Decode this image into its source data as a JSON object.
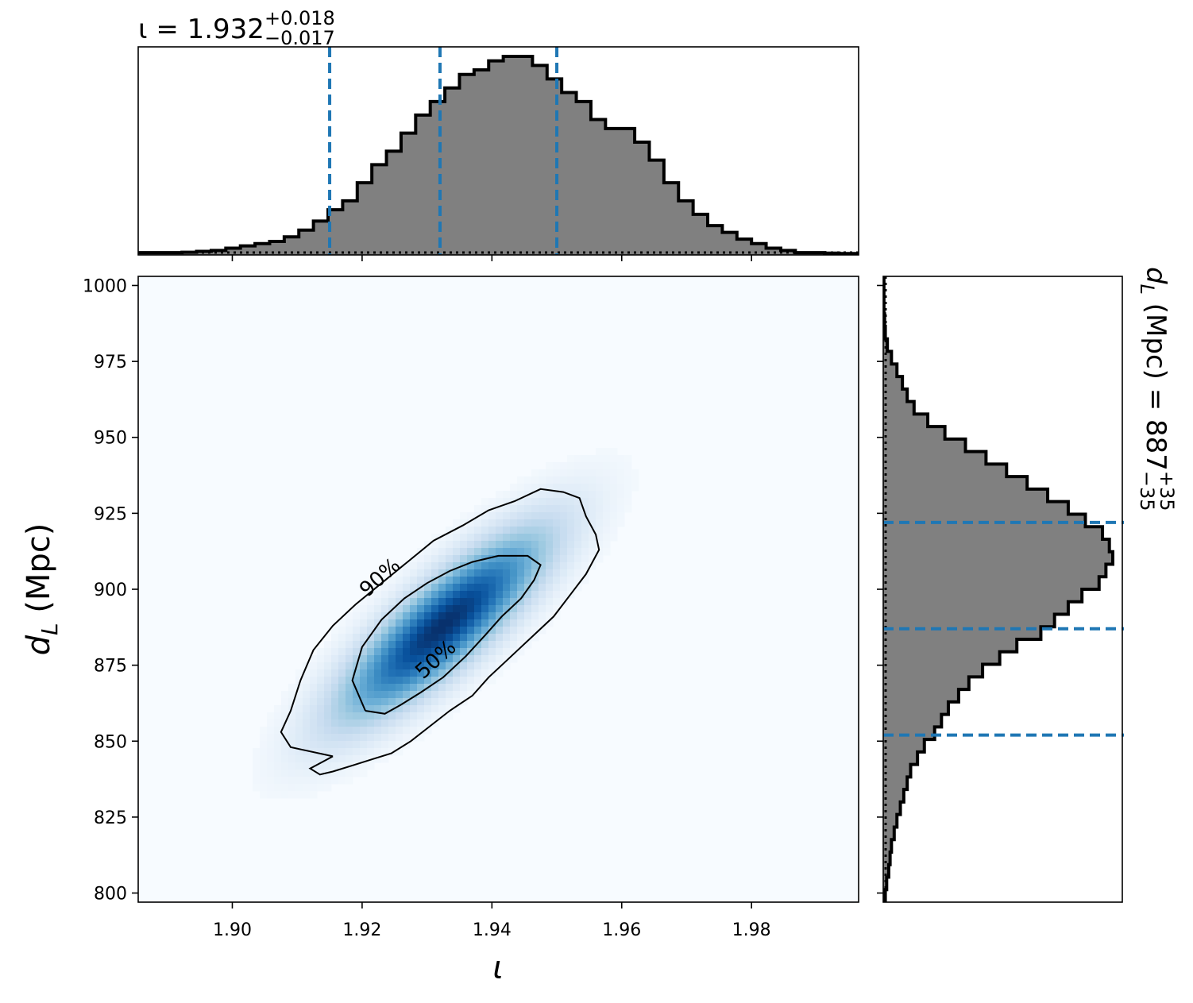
{
  "chart_data": [
    {
      "panel": "top-marginal",
      "type": "histogram",
      "title": {
        "prefix": "ι = 1.932",
        "sup": "+0.018",
        "sub": "−0.017"
      },
      "xlim": [
        1.8855,
        1.9965
      ],
      "x_ticks": [
        1.9,
        1.92,
        1.94,
        1.96,
        1.98
      ],
      "bin_edges_start": 1.8855,
      "bin_width": 0.00225,
      "counts": [
        0.5,
        0.5,
        0.5,
        0.6,
        0.8,
        1,
        1.5,
        2,
        2.5,
        3,
        4,
        5.5,
        7.5,
        10,
        12,
        16,
        20,
        23,
        27,
        31,
        34,
        37,
        40,
        41,
        43,
        44,
        44,
        42,
        39,
        36,
        34,
        30,
        28,
        28,
        25,
        21,
        16,
        12,
        9,
        6.5,
        5,
        3.5,
        2.5,
        1.5,
        1,
        0.5,
        0.5,
        0.4,
        0.3,
        0.3
      ],
      "quantile_lines": [
        1.915,
        1.932,
        1.95
      ],
      "quantile_line_color": "#1f77b4",
      "fill_color": "#808080"
    },
    {
      "panel": "right-marginal",
      "type": "histogram",
      "orientation": "horizontal",
      "title": {
        "prefix": "d",
        "prefix_sub": "L",
        "middle": " (Mpc) = 887",
        "sup": "+35",
        "sub": "−35"
      },
      "ylim": [
        797,
        1003
      ],
      "y_ticks": [
        800,
        825,
        850,
        875,
        900,
        925,
        950,
        975,
        1000
      ],
      "bin_edges_start": 797,
      "bin_width": 4.12,
      "counts": [
        0.3,
        0.5,
        0.8,
        1,
        1.2,
        1.6,
        2,
        2.5,
        3,
        3.5,
        4,
        5,
        6,
        7.5,
        8.5,
        9.5,
        11,
        12.5,
        14.5,
        17,
        19.5,
        23,
        25,
        27,
        29,
        31.5,
        32.5,
        33.5,
        33,
        32,
        29.5,
        27,
        24,
        21,
        18,
        15,
        12,
        9,
        6.5,
        4.5,
        3.5,
        2.8,
        2,
        1.2,
        0.6,
        0.3,
        0.2,
        0.1,
        0.1,
        0.1
      ],
      "quantile_lines": [
        852,
        887,
        922
      ],
      "quantile_line_color": "#1f77b4",
      "fill_color": "#808080"
    },
    {
      "panel": "joint",
      "type": "heatmap",
      "xlabel": "ι",
      "ylabel": {
        "main": "d",
        "sub": "L",
        "rest": " (Mpc)"
      },
      "xlim": [
        1.8855,
        1.9965
      ],
      "ylim": [
        797,
        1003
      ],
      "x_ticks": [
        1.9,
        1.92,
        1.94,
        1.96,
        1.98
      ],
      "x_tick_labels": [
        "1.90",
        "1.92",
        "1.94",
        "1.96",
        "1.98"
      ],
      "y_ticks": [
        800,
        825,
        850,
        875,
        900,
        925,
        950,
        975,
        1000
      ],
      "y_tick_labels": [
        "800",
        "825",
        "850",
        "875",
        "900",
        "925",
        "950",
        "975",
        "1000"
      ],
      "peak": {
        "x": 1.9325,
        "y": 888
      },
      "colormap": "Blues",
      "contours": [
        {
          "label": "90%",
          "label_position": {
            "x": 1.9227,
            "y": 904
          },
          "label_rotation_deg": -42,
          "points": [
            [
              1.9155,
              845
            ],
            [
              1.912,
              841
            ],
            [
              1.9135,
              839
            ],
            [
              1.9155,
              840
            ],
            [
              1.9185,
              842
            ],
            [
              1.9215,
              844
            ],
            [
              1.9245,
              846
            ],
            [
              1.9275,
              850
            ],
            [
              1.9305,
              855
            ],
            [
              1.9335,
              860
            ],
            [
              1.937,
              865
            ],
            [
              1.9395,
              871
            ],
            [
              1.942,
              876
            ],
            [
              1.9445,
              881
            ],
            [
              1.947,
              886
            ],
            [
              1.9495,
              891
            ],
            [
              1.952,
              898
            ],
            [
              1.9545,
              905
            ],
            [
              1.9565,
              913
            ],
            [
              1.956,
              918
            ],
            [
              1.9545,
              924
            ],
            [
              1.9535,
              930
            ],
            [
              1.951,
              932
            ],
            [
              1.9475,
              933
            ],
            [
              1.9435,
              929
            ],
            [
              1.9395,
              926
            ],
            [
              1.9355,
              921
            ],
            [
              1.931,
              916
            ],
            [
              1.927,
              909
            ],
            [
              1.923,
              902
            ],
            [
              1.919,
              895
            ],
            [
              1.9155,
              888
            ],
            [
              1.9125,
              880
            ],
            [
              1.9105,
              870
            ],
            [
              1.909,
              860
            ],
            [
              1.9075,
              853
            ],
            [
              1.909,
              848
            ],
            [
              1.9155,
              845
            ]
          ]
        },
        {
          "label": "50%",
          "label_position": {
            "x": 1.9313,
            "y": 877
          },
          "label_rotation_deg": -42,
          "points": [
            [
              1.9205,
              860
            ],
            [
              1.9235,
              859
            ],
            [
              1.926,
              862
            ],
            [
              1.929,
              866
            ],
            [
              1.9325,
              871
            ],
            [
              1.936,
              878
            ],
            [
              1.939,
              885
            ],
            [
              1.9415,
              891
            ],
            [
              1.9445,
              897
            ],
            [
              1.9465,
              903
            ],
            [
              1.9475,
              908
            ],
            [
              1.9455,
              911
            ],
            [
              1.941,
              911
            ],
            [
              1.937,
              909
            ],
            [
              1.9335,
              906
            ],
            [
              1.93,
              902
            ],
            [
              1.9265,
              897
            ],
            [
              1.923,
              890
            ],
            [
              1.92,
              881
            ],
            [
              1.9185,
              870
            ],
            [
              1.9205,
              860
            ]
          ]
        }
      ]
    }
  ]
}
